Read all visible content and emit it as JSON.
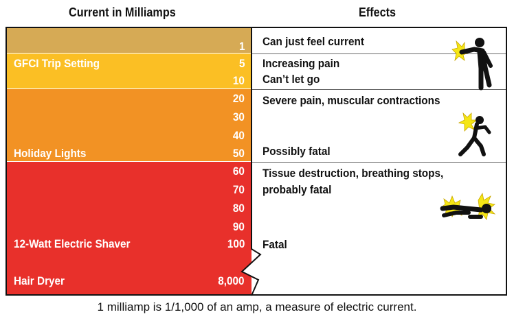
{
  "headers": {
    "current": "Current in Milliamps",
    "effects": "Effects"
  },
  "left_labels": {
    "gfci": "GFCI Trip Setting",
    "holiday": "Holiday Lights",
    "shaver": "12-Watt Electric Shaver",
    "dryer": "Hair Dryer"
  },
  "values": [
    "1",
    "5",
    "10",
    "20",
    "30",
    "40",
    "50",
    "60",
    "70",
    "80",
    "90",
    "100",
    "8,000"
  ],
  "effects": {
    "feel": "Can just feel current",
    "increasing": "Increasing pain",
    "cant_let_go": "Can’t let go",
    "severe": "Severe pain, muscular contractions",
    "possibly_fatal": "Possibly fatal",
    "tissue_line1": "Tissue destruction, breathing stops,",
    "tissue_line2": "probably fatal",
    "fatal": "Fatal"
  },
  "footer": "1 milliamp is 1/1,000 of an amp, a measure of electric current.",
  "colors": {
    "tan": "#d6aa55",
    "yellow": "#fbbf24",
    "orange": "#f29224",
    "red": "#e8302b",
    "spark": "#f5e616"
  },
  "icons": [
    "shocked-person-icon",
    "falling-person-icon",
    "lying-person-icon"
  ]
}
